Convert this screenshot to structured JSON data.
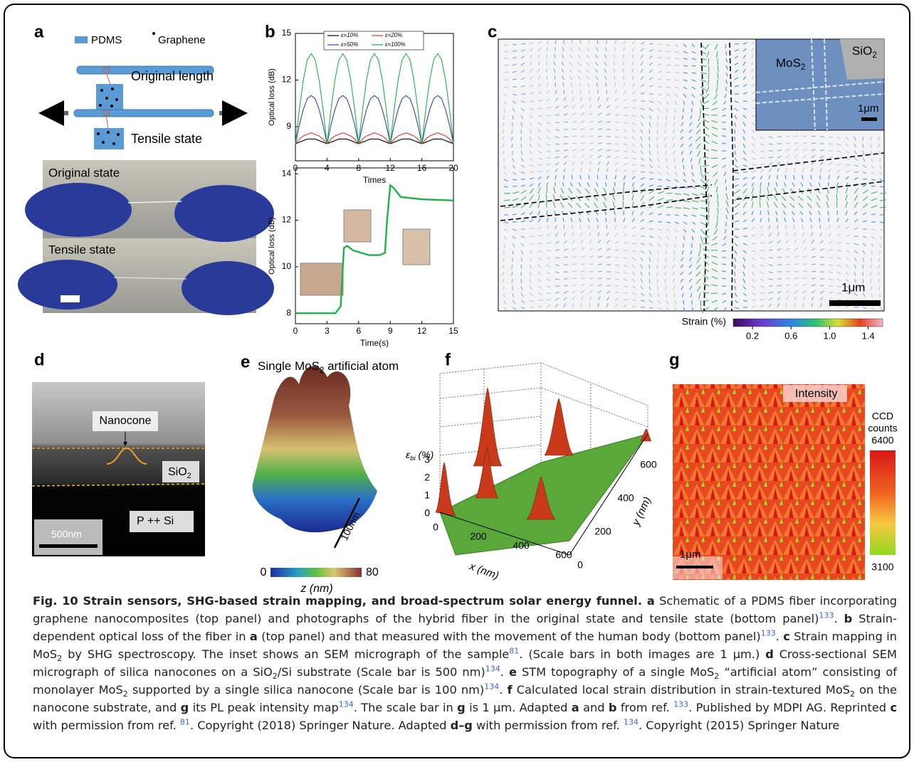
{
  "panels": {
    "a": {
      "letter": "a",
      "legend": [
        "PDMS",
        "Graphene"
      ],
      "states": [
        "Original length",
        "Tensile state"
      ],
      "photo_labels": [
        "Original state",
        "Tensile state"
      ]
    },
    "b": {
      "letter": "b"
    },
    "c": {
      "letter": "c",
      "inset_labels": [
        {
          "text": "MoS",
          "sub": "2"
        },
        {
          "text": "SiO",
          "sub": "2"
        }
      ],
      "inset_scale": "1μm",
      "scale": "1μm",
      "colorbar": {
        "label": "Strain (%)",
        "lim": [
          0,
          1.55
        ],
        "ticks": [
          0.2,
          0.6,
          {
            "value": 1,
            "label": "1.0"
          },
          1.4
        ]
      }
    },
    "d": {
      "letter": "d",
      "labels": [
        {
          "text": "Nanocone"
        },
        {
          "text": "SiO",
          "sub": "2"
        },
        {
          "text": "P ++ Si"
        }
      ],
      "scale": "500nm"
    },
    "e": {
      "letter": "e",
      "title": {
        "text": "Single MoS",
        "sub": "2",
        "after": " artificial atom"
      },
      "scale": "100nm",
      "colorbar_ends": [
        0,
        80
      ],
      "colorbar_label": {
        "text": "z (nm)"
      }
    },
    "f": {
      "letter": "f",
      "z_label": {
        "text": "ε",
        "sub": "bi",
        "after": " (%)"
      },
      "z_ticks": [
        0,
        1,
        2,
        3
      ],
      "x_ticks": [
        0,
        200,
        400,
        600
      ],
      "y_ticks": [
        0,
        200,
        400,
        600
      ],
      "x_label": "x (nm)",
      "y_label": "y (nm)"
    },
    "g": {
      "letter": "g",
      "intensity": "Intensity",
      "counts_label": [
        "CCD",
        "counts"
      ],
      "colorbar_ends": [
        6400,
        3100
      ],
      "scale": "1μm"
    }
  },
  "chart_data": [
    {
      "type": "line",
      "x_label": "Times",
      "y_label": "Optical loss (dB)",
      "xlim": [
        0,
        20
      ],
      "ylim": [
        6.8,
        15
      ],
      "xticks": [
        0,
        4,
        8,
        12,
        16,
        20
      ],
      "yticks": [
        9,
        12,
        15
      ],
      "x": [
        0,
        0.5,
        1,
        1.5,
        2,
        2.5,
        3,
        3.5,
        4,
        4.5,
        5,
        5.5,
        6,
        6.5,
        7,
        7.5,
        8,
        8.5,
        9,
        9.5,
        10,
        10.5,
        11,
        11.5,
        12,
        12.5,
        13,
        13.5,
        14,
        14.5,
        15,
        15.5,
        16,
        16.5,
        17,
        17.5,
        18,
        18.5,
        19,
        19.5,
        20
      ],
      "series": [
        {
          "name": "ε=10%",
          "color": "#000000",
          "values": [
            7.9,
            8.0,
            8.1,
            8.2,
            8.2,
            8.2,
            8.1,
            8.0,
            7.9,
            8.0,
            8.1,
            8.2,
            8.2,
            8.2,
            8.1,
            8.0,
            7.9,
            8.0,
            8.1,
            8.2,
            8.2,
            8.2,
            8.1,
            8.0,
            7.9,
            8.0,
            8.1,
            8.2,
            8.2,
            8.2,
            8.1,
            8.0,
            7.9,
            8.0,
            8.1,
            8.2,
            8.2,
            8.2,
            8.1,
            8.0,
            7.9
          ]
        },
        {
          "name": "ε=20%",
          "color": "#e8302a",
          "values": [
            7.9,
            8.2,
            8.4,
            8.5,
            8.6,
            8.5,
            8.4,
            8.2,
            7.9,
            8.2,
            8.4,
            8.5,
            8.6,
            8.5,
            8.4,
            8.2,
            7.9,
            8.2,
            8.4,
            8.5,
            8.6,
            8.5,
            8.4,
            8.2,
            7.9,
            8.2,
            8.4,
            8.5,
            8.6,
            8.5,
            8.4,
            8.2,
            7.9,
            8.2,
            8.4,
            8.5,
            8.6,
            8.5,
            8.4,
            8.2,
            7.9
          ]
        },
        {
          "name": "ε=50%",
          "color": "#3b3fb0",
          "values": [
            7.9,
            9.1,
            10.1,
            10.8,
            11.0,
            10.8,
            10.1,
            9.1,
            7.9,
            9.1,
            10.1,
            10.8,
            11.0,
            10.8,
            10.1,
            9.1,
            7.9,
            9.1,
            10.1,
            10.8,
            11.0,
            10.8,
            10.1,
            9.1,
            7.9,
            9.1,
            10.1,
            10.8,
            11.0,
            10.8,
            10.1,
            9.1,
            7.9,
            9.1,
            10.1,
            10.8,
            11.0,
            10.8,
            10.1,
            9.1,
            7.9
          ]
        },
        {
          "name": "ε=100%",
          "color": "#1fb24a",
          "values": [
            7.9,
            10.1,
            12.0,
            13.3,
            13.7,
            13.3,
            12.0,
            10.1,
            7.9,
            10.1,
            12.0,
            13.3,
            13.7,
            13.3,
            12.0,
            10.1,
            7.9,
            10.1,
            12.0,
            13.3,
            13.7,
            13.3,
            12.0,
            10.1,
            7.9,
            10.1,
            12.0,
            13.3,
            13.7,
            13.3,
            12.0,
            10.1,
            7.9,
            10.1,
            12.0,
            13.3,
            13.7,
            13.3,
            12.0,
            10.1,
            7.9
          ]
        }
      ]
    },
    {
      "type": "line",
      "x_label": "Time(s)",
      "y_label": "Optical loss (dB)",
      "xlim": [
        0,
        15
      ],
      "ylim": [
        7.55,
        14.25
      ],
      "xticks": [
        0,
        3,
        6,
        9,
        12,
        15
      ],
      "yticks": [
        8,
        10,
        12,
        14
      ],
      "x": [
        0,
        3.8,
        4.3,
        4.6,
        4.9,
        5.5,
        7,
        8,
        8.5,
        8.7,
        9.0,
        9.3,
        10,
        12,
        15
      ],
      "color": "#1fb24a",
      "values": [
        8.0,
        8.0,
        8.3,
        10.8,
        10.9,
        10.7,
        10.5,
        10.5,
        10.6,
        12.0,
        13.5,
        13.4,
        13.0,
        12.9,
        12.85
      ]
    }
  ],
  "caption": [
    {
      "text": "Fig. 10 Strain sensors, SHG-based strain mapping, and broad-spectrum solar energy funnel. ",
      "style": "bold"
    },
    {
      "text": "a",
      "style": "bold"
    },
    {
      "text": " Schematic of a PDMS fiber incorporating graphene nanocomposites (top panel) and photographs of the hybrid fiber in the original state and tensile state (bottom panel)"
    },
    {
      "text": "133",
      "style": "sup"
    },
    {
      "text": ". "
    },
    {
      "text": "b",
      "style": "bold"
    },
    {
      "text": " Strain-dependent optical loss of the fiber in "
    },
    {
      "text": "a",
      "style": "bold"
    },
    {
      "text": " (top panel) and that measured with the movement of the human body (bottom panel)"
    },
    {
      "text": "133",
      "style": "sup"
    },
    {
      "text": ". "
    },
    {
      "text": "c",
      "style": "bold"
    },
    {
      "text": " Strain mapping in MoS"
    },
    {
      "text": "2",
      "style": "sub"
    },
    {
      "text": " by SHG spectroscopy. The inset shows an SEM micrograph of the sample"
    },
    {
      "text": "81",
      "style": "sup"
    },
    {
      "text": ". (Scale bars in both images are 1 µm.) "
    },
    {
      "text": "d",
      "style": "bold"
    },
    {
      "text": " Cross-sectional SEM micrograph of silica nanocones on a SiO"
    },
    {
      "text": "2",
      "style": "sub"
    },
    {
      "text": "/Si substrate (Scale bar is 500 nm)"
    },
    {
      "text": "134",
      "style": "sup"
    },
    {
      "text": ". "
    },
    {
      "text": "e",
      "style": "bold"
    },
    {
      "text": " STM topography of a single MoS"
    },
    {
      "text": "2",
      "style": "sub"
    },
    {
      "text": " “artificial atom” consisting of monolayer MoS"
    },
    {
      "text": "2",
      "style": "sub"
    },
    {
      "text": " supported by a single silica nanocone (Scale bar is 100 nm)"
    },
    {
      "text": "134",
      "style": "sup"
    },
    {
      "text": ". "
    },
    {
      "text": "f",
      "style": "bold"
    },
    {
      "text": " Calculated local strain distribution in strain-textured MoS"
    },
    {
      "text": "2",
      "style": "sub"
    },
    {
      "text": " on the nanocone substrate, and "
    },
    {
      "text": "g",
      "style": "bold"
    },
    {
      "text": " its PL peak intensity map"
    },
    {
      "text": "134",
      "style": "sup"
    },
    {
      "text": ". The scale bar in "
    },
    {
      "text": "g",
      "style": "bold"
    },
    {
      "text": " is 1 µm. Adapted "
    },
    {
      "text": "a",
      "style": "bold"
    },
    {
      "text": " and "
    },
    {
      "text": "b",
      "style": "bold"
    },
    {
      "text": " from ref. "
    },
    {
      "text": "133",
      "style": "sup"
    },
    {
      "text": ". Published by MDPI AG. Reprinted "
    },
    {
      "text": "c",
      "style": "bold"
    },
    {
      "text": " with permission from ref. "
    },
    {
      "text": "81",
      "style": "sup"
    },
    {
      "text": ". Copyright (2018) Springer Nature. Adapted "
    },
    {
      "text": "d–g",
      "style": "bold"
    },
    {
      "text": " with permission from ref. "
    },
    {
      "text": "134",
      "style": "sup"
    },
    {
      "text": ". Copyright (2015) Springer Nature"
    }
  ]
}
